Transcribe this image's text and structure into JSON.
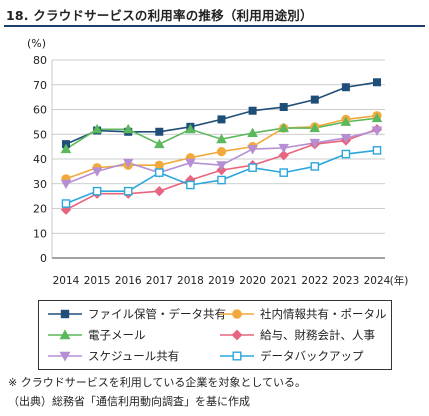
{
  "title": "18. クラウドサービスの利用率の推移（利用用途別）",
  "chart_data": {
    "type": "line",
    "y_unit": "(%)",
    "x_unit": "(年)",
    "ylim": [
      0,
      80
    ],
    "yticks": [
      0,
      10,
      20,
      30,
      40,
      50,
      60,
      70,
      80
    ],
    "grid": "horizontal",
    "legend_position": "bottom",
    "categories": [
      "2014",
      "2015",
      "2016",
      "2017",
      "2018",
      "2019",
      "2020",
      "2021",
      "2022",
      "2023",
      "2024"
    ],
    "series": [
      {
        "name": "ファイル保管・データ共有",
        "color": "#1f4e79",
        "marker": "square",
        "fill": true,
        "values": [
          46,
          51.5,
          51,
          51,
          53,
          56,
          59.5,
          61,
          64,
          69,
          71
        ]
      },
      {
        "name": "社内情報共有・ポータル",
        "color": "#f2a93b",
        "marker": "circle",
        "fill": true,
        "values": [
          32,
          36.5,
          37.5,
          37.5,
          40.5,
          43,
          45,
          52.5,
          53,
          56,
          57.5
        ]
      },
      {
        "name": "電子メール",
        "color": "#5cb85c",
        "marker": "triangle-up",
        "fill": true,
        "values": [
          44,
          52,
          52,
          46,
          52,
          48,
          50.5,
          52.5,
          52.5,
          55,
          56.5
        ]
      },
      {
        "name": "給与、財務会計、人事",
        "color": "#e8657f",
        "marker": "diamond",
        "fill": true,
        "values": [
          19.5,
          26,
          26,
          27,
          31.5,
          35.5,
          37.5,
          41.5,
          46,
          47.5,
          52
        ]
      },
      {
        "name": "スケジュール共有",
        "color": "#b58fd6",
        "marker": "triangle-down",
        "fill": true,
        "values": [
          30,
          35,
          38.5,
          34.5,
          38.5,
          37.5,
          44,
          44.5,
          46.5,
          48.5,
          51.5
        ]
      },
      {
        "name": "データバックアップ",
        "color": "#2aa7dd",
        "marker": "square",
        "fill": false,
        "values": [
          22,
          27,
          27,
          34.5,
          29.5,
          31.5,
          36.5,
          34.5,
          37,
          42,
          43.5
        ]
      }
    ]
  },
  "notes": {
    "note1": "※ クラウドサービスを利用している企業を対象としている。",
    "note2": "（出典）総務省「通信利用動向調査」を基に作成"
  }
}
